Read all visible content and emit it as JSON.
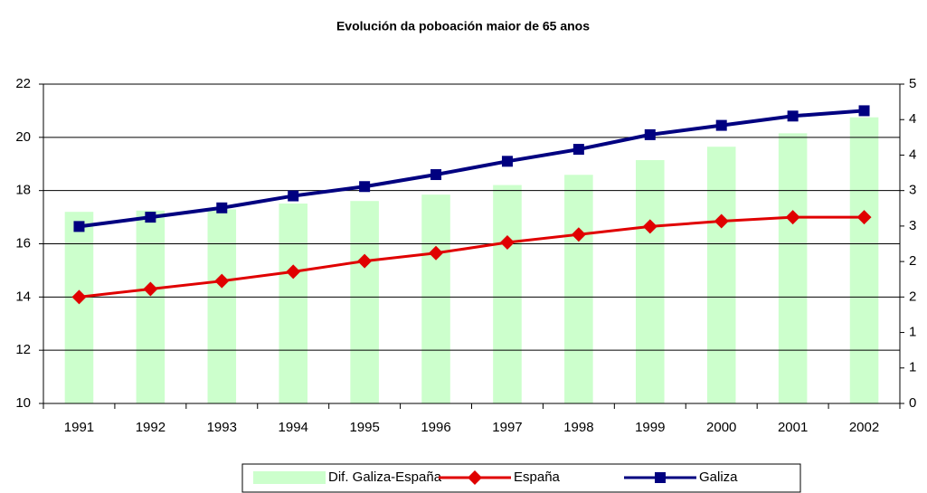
{
  "chart_data": {
    "type": "bar-line",
    "title": "Evolución da poboación maior de 65 anos",
    "categories": [
      "1991",
      "1992",
      "1993",
      "1994",
      "1995",
      "1996",
      "1997",
      "1998",
      "1999",
      "2000",
      "2001",
      "2002"
    ],
    "series": [
      {
        "name": "Dif. Galiza-España",
        "type": "bar",
        "axis": "y2",
        "color": "#ccffcc",
        "values": [
          3.0,
          3.02,
          3.04,
          3.13,
          3.17,
          3.27,
          3.42,
          3.58,
          3.81,
          4.02,
          4.23,
          4.48
        ]
      },
      {
        "name": "España",
        "type": "line",
        "marker": "diamond",
        "color": "#e00000",
        "values": [
          14.0,
          14.3,
          14.6,
          14.95,
          15.35,
          15.65,
          16.05,
          16.35,
          16.65,
          16.85,
          17.0,
          17.0
        ]
      },
      {
        "name": "Galiza",
        "type": "line",
        "marker": "square",
        "color": "#000080",
        "values": [
          16.65,
          17.0,
          17.35,
          17.8,
          18.15,
          18.6,
          19.1,
          19.55,
          20.1,
          20.45,
          20.8,
          21.0
        ]
      }
    ],
    "ylim": [
      10,
      22
    ],
    "yticks": [
      10,
      12,
      14,
      16,
      18,
      20,
      22
    ],
    "y2lim": [
      0,
      5
    ],
    "y2ticks": [
      0,
      {
        "value": 0.5556,
        "label": "1"
      },
      {
        "value": 1.1111,
        "label": "1"
      },
      {
        "value": 1.6667,
        "label": "2"
      },
      {
        "value": 2.2222,
        "label": "2"
      },
      {
        "value": 2.7778,
        "label": "3"
      },
      {
        "value": 3.3333,
        "label": "3"
      },
      {
        "value": 3.8889,
        "label": "4"
      },
      {
        "value": 4.4444,
        "label": "4"
      },
      5
    ],
    "grid": true,
    "legend": "bottom"
  }
}
